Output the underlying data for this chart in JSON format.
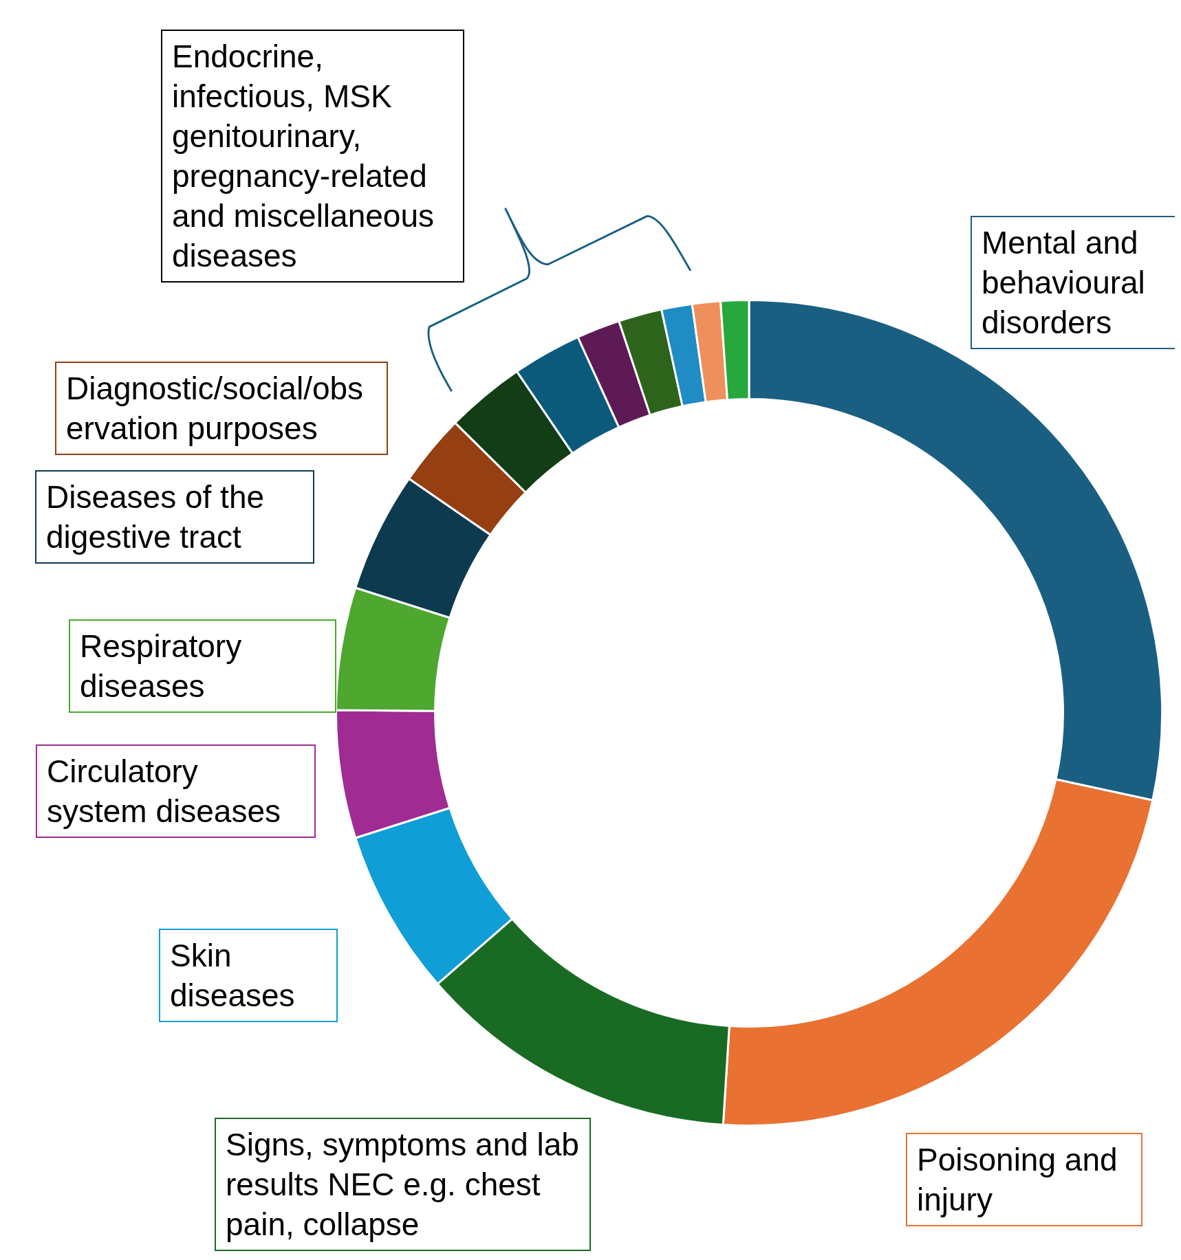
{
  "chart_data": {
    "type": "donut",
    "categories": [
      "Mental and behavioural disorders",
      "Poisoning and injury",
      "Signs, symptoms and lab results NEC e.g. chest pain, collapse",
      "Skin diseases",
      "Circulatory system diseases",
      "Respiratory diseases",
      "Diseases of the digestive tract",
      "Diagnostic/social/observation purposes",
      null,
      null,
      null,
      null,
      null,
      null,
      null
    ],
    "values": [
      28.4,
      22.6,
      12.6,
      6.5,
      5.0,
      4.8,
      4.7,
      2.8,
      3.1,
      2.7,
      1.7,
      1.7,
      1.2,
      1.1,
      1.1
    ],
    "colors": [
      "#1a5f82",
      "#e97132",
      "#196b24",
      "#0f9ed5",
      "#a02b93",
      "#4ea72e",
      "#0e3a50",
      "#953f12",
      "#123d17",
      "#0b5a7c",
      "#5e1a55",
      "#2e631c",
      "#1f8cc4",
      "#ef8f5c",
      "#26a83c"
    ],
    "annotations": [
      "Endocrine, infectious, MSK genitourinary, pregnancy-related and miscellaneous diseases"
    ],
    "legend": false
  }
}
